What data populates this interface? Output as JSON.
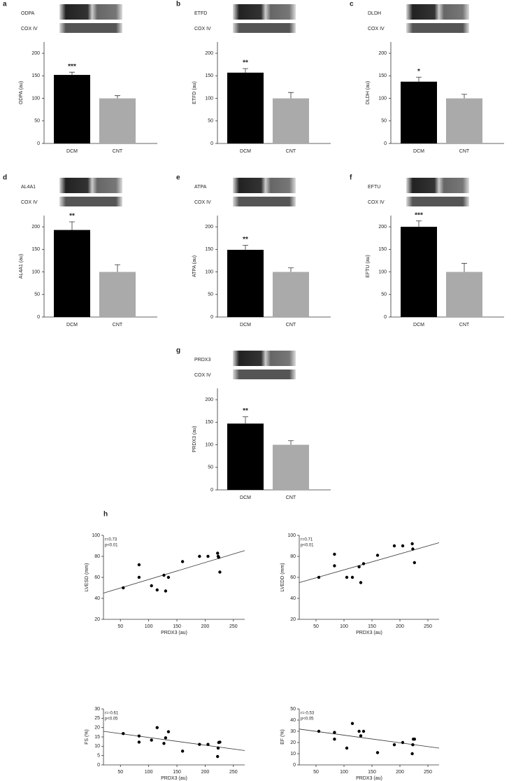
{
  "chart_data": [
    {
      "type": "bar",
      "panel": "a",
      "blot_labels": [
        "ODPA",
        "COX IV"
      ],
      "ylabel": "ODPA (au)",
      "categories": [
        "DCM",
        "CNT"
      ],
      "values": [
        152,
        100
      ],
      "errors": [
        6,
        6
      ],
      "annotation": "***",
      "colors": [
        "#000000",
        "#aaaaaa"
      ],
      "ylim": [
        0,
        225
      ],
      "yticks": [
        0,
        50,
        100,
        150,
        200
      ]
    },
    {
      "type": "bar",
      "panel": "b",
      "blot_labels": [
        "ETFD",
        "COX IV"
      ],
      "ylabel": "ETFD (au)",
      "categories": [
        "DCM",
        "CNT"
      ],
      "values": [
        157,
        100
      ],
      "errors": [
        9,
        13
      ],
      "annotation": "**",
      "colors": [
        "#000000",
        "#aaaaaa"
      ],
      "ylim": [
        0,
        225
      ],
      "yticks": [
        0,
        50,
        100,
        150,
        200
      ]
    },
    {
      "type": "bar",
      "panel": "c",
      "blot_labels": [
        "DLDH",
        "COX IV"
      ],
      "ylabel": "DLDH (au)",
      "categories": [
        "DCM",
        "CNT"
      ],
      "values": [
        137,
        100
      ],
      "errors": [
        10,
        9
      ],
      "annotation": "*",
      "colors": [
        "#000000",
        "#aaaaaa"
      ],
      "ylim": [
        0,
        225
      ],
      "yticks": [
        0,
        50,
        100,
        150,
        200
      ]
    },
    {
      "type": "bar",
      "panel": "d",
      "blot_labels": [
        "AL4A1",
        "COX IV"
      ],
      "ylabel": "AL4A1 (au)",
      "categories": [
        "DCM",
        "CNT"
      ],
      "values": [
        193,
        100
      ],
      "errors": [
        18,
        16
      ],
      "annotation": "**",
      "colors": [
        "#000000",
        "#aaaaaa"
      ],
      "ylim": [
        0,
        225
      ],
      "yticks": [
        0,
        50,
        100,
        150,
        200
      ]
    },
    {
      "type": "bar",
      "panel": "e",
      "blot_labels": [
        "ATPA",
        "COX IV"
      ],
      "ylabel": "ATPA (au)",
      "categories": [
        "DCM",
        "CNT"
      ],
      "values": [
        149,
        100
      ],
      "errors": [
        10,
        9
      ],
      "annotation": "**",
      "colors": [
        "#000000",
        "#aaaaaa"
      ],
      "ylim": [
        0,
        225
      ],
      "yticks": [
        0,
        50,
        100,
        150,
        200
      ]
    },
    {
      "type": "bar",
      "panel": "f",
      "blot_labels": [
        "EFTU",
        "COX IV"
      ],
      "ylabel": "EFTU (au)",
      "categories": [
        "DCM",
        "CNT"
      ],
      "values": [
        200,
        100
      ],
      "errors": [
        13,
        19
      ],
      "annotation": "***",
      "colors": [
        "#000000",
        "#aaaaaa"
      ],
      "ylim": [
        0,
        225
      ],
      "yticks": [
        0,
        50,
        100,
        150,
        200
      ]
    },
    {
      "type": "bar",
      "panel": "g",
      "blot_labels": [
        "PRDX3",
        "COX IV"
      ],
      "ylabel": "PRDX3 (au)",
      "categories": [
        "DCM",
        "CNT"
      ],
      "values": [
        147,
        100
      ],
      "errors": [
        15,
        9
      ],
      "annotation": "**",
      "colors": [
        "#000000",
        "#aaaaaa"
      ],
      "ylim": [
        0,
        225
      ],
      "yticks": [
        0,
        50,
        100,
        150,
        200
      ]
    },
    {
      "type": "scatter",
      "panel": "h",
      "annotations": [
        "r=0.73",
        "p<0.01"
      ],
      "xlabel": "PRDX3 (au)",
      "ylabel": "LVESD (mm)",
      "x": [
        55,
        83,
        83,
        105,
        115,
        127,
        130,
        135,
        160,
        190,
        205,
        222,
        223,
        224,
        226
      ],
      "y": [
        50,
        72,
        60,
        52,
        48,
        62,
        47,
        60,
        75,
        80,
        80,
        83,
        80,
        79,
        65
      ],
      "trend": {
        "x": [
          20,
          270
        ],
        "y": [
          45,
          85.5
        ]
      },
      "color": "#000000",
      "xlim": [
        20,
        270
      ],
      "ylim": [
        20,
        100
      ],
      "xticks": [
        50,
        100,
        150,
        200,
        250
      ],
      "yticks": [
        20,
        40,
        60,
        80,
        100
      ]
    },
    {
      "type": "scatter",
      "annotations": [
        "r=0.71",
        "p<0.01"
      ],
      "xlabel": "PRDX3 (au)",
      "ylabel": "LVEDD (mm)",
      "x": [
        55,
        83,
        83,
        105,
        115,
        127,
        130,
        135,
        160,
        190,
        205,
        222,
        223,
        226
      ],
      "y": [
        60,
        82,
        71,
        60,
        60,
        70,
        55,
        73,
        81,
        90,
        90,
        92,
        87,
        74
      ],
      "trend": {
        "x": [
          20,
          270
        ],
        "y": [
          55,
          93
        ]
      },
      "color": "#000000",
      "xlim": [
        20,
        270
      ],
      "ylim": [
        20,
        100
      ],
      "xticks": [
        50,
        100,
        150,
        200,
        250
      ],
      "yticks": [
        20,
        40,
        60,
        80,
        100
      ]
    },
    {
      "type": "scatter",
      "annotations": [
        "r=-0.61",
        "p<0.05"
      ],
      "xlabel": "PRDX3 (au)",
      "ylabel": "FS (%)",
      "x": [
        55,
        83,
        83,
        105,
        115,
        127,
        130,
        135,
        160,
        190,
        205,
        222,
        223,
        224,
        226
      ],
      "y": [
        16.8,
        15.5,
        12.2,
        13.3,
        20,
        11.5,
        14.5,
        17.8,
        7.4,
        11,
        11,
        4.5,
        9,
        12,
        12.2
      ],
      "trend": {
        "x": [
          20,
          270
        ],
        "y": [
          18,
          7.7
        ]
      },
      "color": "#000000",
      "xlim": [
        20,
        270
      ],
      "ylim": [
        0,
        30
      ],
      "xticks": [
        50,
        100,
        150,
        200,
        250
      ],
      "yticks": [
        0,
        5,
        10,
        15,
        20,
        25,
        30
      ]
    },
    {
      "type": "scatter",
      "annotations": [
        "r=-0.53",
        "p<0.05"
      ],
      "xlabel": "PRDX3 (au)",
      "ylabel": "EF (%)",
      "x": [
        55,
        83,
        83,
        105,
        115,
        127,
        130,
        135,
        160,
        190,
        205,
        222,
        223,
        224,
        226
      ],
      "y": [
        30,
        29,
        23,
        15,
        37,
        30,
        26,
        30,
        11,
        18,
        20,
        10,
        18,
        23,
        23
      ],
      "trend": {
        "x": [
          20,
          270
        ],
        "y": [
          32,
          15
        ]
      },
      "color": "#000000",
      "xlim": [
        20,
        270
      ],
      "ylim": [
        0,
        50
      ],
      "xticks": [
        50,
        100,
        150,
        200,
        250
      ],
      "yticks": [
        0,
        10,
        20,
        30,
        40,
        50
      ]
    }
  ]
}
